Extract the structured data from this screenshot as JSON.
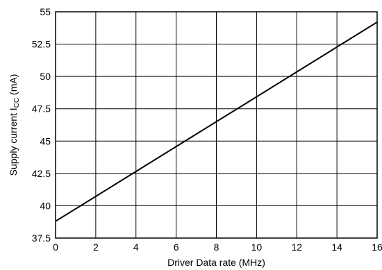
{
  "chart_data": {
    "type": "line",
    "title": "",
    "xlabel": "Driver Data rate (MHz)",
    "ylabel": {
      "prefix": "Supply current I",
      "subscript": "CC",
      "suffix": " (mA)"
    },
    "xlim": [
      0,
      16
    ],
    "ylim": [
      37.5,
      55
    ],
    "x_ticks": [
      "0",
      "2",
      "4",
      "6",
      "8",
      "10",
      "12",
      "14",
      "16"
    ],
    "y_ticks": [
      "37.5",
      "40",
      "42.5",
      "45",
      "47.5",
      "50",
      "52.5",
      "55"
    ],
    "grid": true,
    "legend": "none",
    "series": [
      {
        "x": [
          0,
          16
        ],
        "y": [
          38.8,
          54.2
        ],
        "color": "#000000"
      }
    ]
  }
}
